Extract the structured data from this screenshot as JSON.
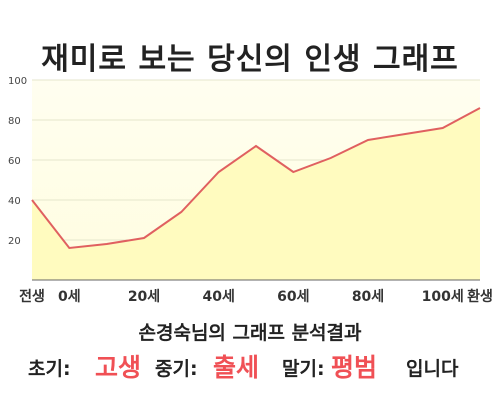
{
  "title": "재미로 보는 당신의 인생 그래프",
  "chart_data": {
    "type": "area",
    "x": [
      -10,
      0,
      10,
      20,
      30,
      40,
      50,
      60,
      70,
      80,
      90,
      100,
      110
    ],
    "values": [
      40,
      16,
      18,
      21,
      34,
      54,
      67,
      54,
      61,
      70,
      73,
      76,
      86
    ],
    "xlim": [
      -10,
      110
    ],
    "ylim": [
      0,
      100
    ],
    "yticks": [
      20,
      40,
      60,
      80,
      100
    ],
    "xtick_values": [
      -10,
      0,
      20,
      40,
      60,
      80,
      100,
      110
    ],
    "xtick_labels": [
      "전생",
      "0세",
      "20세",
      "40세",
      "60세",
      "80세",
      "100세",
      "환생"
    ],
    "line_color": "#e06060",
    "fill_color": "#fffbbf"
  },
  "summary": {
    "title": "손경숙님의 그래프 분석결과",
    "early_label": "초기:",
    "early_value": "고생",
    "middle_label": "중기:",
    "middle_value": "출세",
    "late_label": "말기:",
    "late_value": "평범",
    "ending": "입니다"
  }
}
